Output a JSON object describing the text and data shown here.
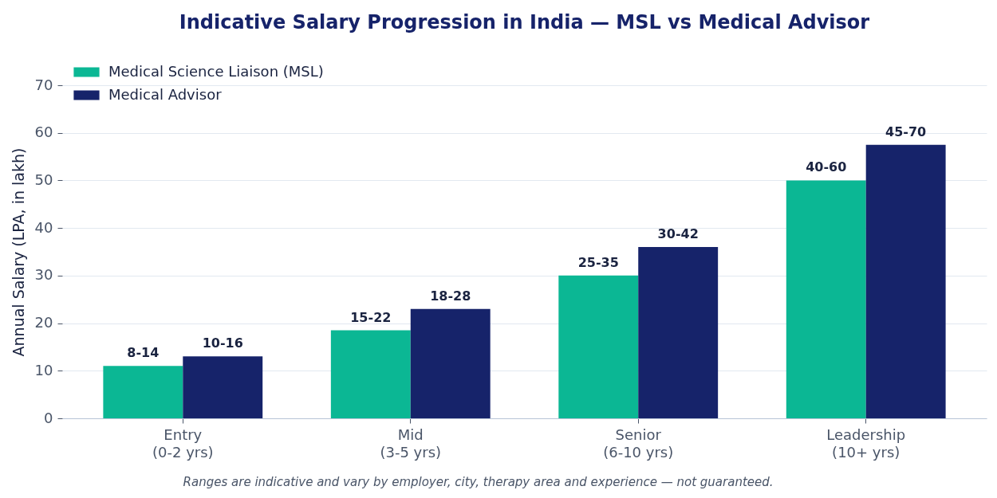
{
  "chart_data": {
    "type": "bar",
    "title": "Indicative Salary Progression in India — MSL vs Medical Advisor",
    "ylabel": "Annual Salary (LPA, in lakh)",
    "categories": [
      "Entry\n(0-2 yrs)",
      "Mid\n(3-5 yrs)",
      "Senior\n(6-10 yrs)",
      "Leadership\n(10+ yrs)"
    ],
    "series": [
      {
        "name": "Medical Science Liaison (MSL)",
        "color": "#0bb794",
        "values": [
          11,
          18.5,
          30,
          50
        ],
        "value_labels": [
          "8-14",
          "15-22",
          "25-35",
          "40-60"
        ]
      },
      {
        "name": "Medical Advisor",
        "color": "#16236a",
        "values": [
          13,
          23,
          36,
          57.5
        ],
        "value_labels": [
          "10-16",
          "18-28",
          "30-42",
          "45-70"
        ]
      }
    ],
    "ylim": [
      0,
      70
    ],
    "yticks": [
      0,
      10,
      20,
      30,
      40,
      50,
      60,
      70
    ],
    "grid": "y",
    "legend": "top left",
    "annotations": [
      "Ranges are indicative and vary by employer, city, therapy area and experience — not guaranteed."
    ]
  }
}
